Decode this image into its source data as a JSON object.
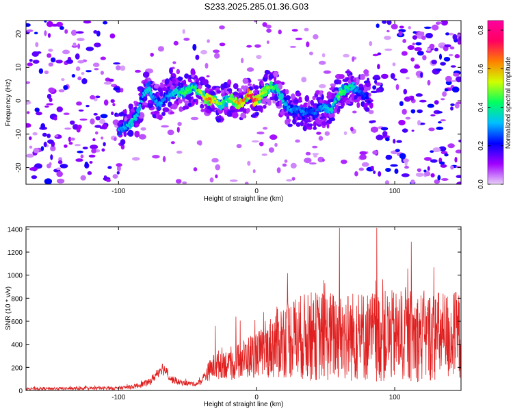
{
  "title": "S233.2025.285.01.36.G03",
  "chart_data": [
    {
      "type": "heatmap",
      "title": "S233.2025.285.01.36.G03",
      "xlabel": "Height of straight line (km)",
      "ylabel": "Frequency (Hz)",
      "xlim": [
        -167,
        148
      ],
      "ylim": [
        -25,
        24
      ],
      "xticks": [
        -100,
        0,
        100
      ],
      "yticks": [
        20,
        10,
        0,
        -10,
        -20
      ],
      "colorbar": {
        "label": "Normalized spectral amplitude",
        "range": [
          0.0,
          0.85
        ],
        "ticks": [
          "0.0",
          "0.2",
          "0.4",
          "0.6",
          "0.8"
        ],
        "colors": [
          "#e8d0f8",
          "#a000ff",
          "#0000ff",
          "#00c0ff",
          "#00ff60",
          "#d0ff00",
          "#ff8000",
          "#ff0060",
          "#ff00a0"
        ]
      },
      "ridge": {
        "x": [
          -100,
          -95,
          -90,
          -86,
          -82,
          -78,
          -74,
          -70,
          -66,
          -62,
          -58,
          -54,
          -50,
          -46,
          -42,
          -38,
          -34,
          -30,
          -26,
          -22,
          -18,
          -14,
          -10,
          -6,
          -2,
          2,
          6,
          10,
          14,
          18,
          22,
          26,
          30,
          34,
          38,
          42,
          46,
          50,
          54,
          58,
          62,
          66,
          70,
          74,
          78,
          82
        ],
        "freq": [
          -9,
          -8,
          -6,
          -4,
          2,
          4,
          0,
          -1,
          1,
          2,
          3,
          2,
          3,
          4,
          3,
          1,
          0,
          0,
          -1,
          0,
          1,
          -1,
          0,
          2,
          0,
          1,
          3,
          4,
          4,
          1,
          -2,
          -3,
          -2,
          -4,
          -3,
          -4,
          -2,
          -2,
          -3,
          1,
          3,
          4,
          4,
          3,
          2,
          0
        ],
        "amplitude": [
          0.3,
          0.35,
          0.4,
          0.35,
          0.35,
          0.4,
          0.3,
          0.35,
          0.3,
          0.35,
          0.4,
          0.45,
          0.5,
          0.45,
          0.5,
          0.6,
          0.7,
          0.6,
          0.5,
          0.4,
          0.55,
          0.65,
          0.7,
          0.75,
          0.85,
          0.6,
          0.55,
          0.5,
          0.45,
          0.4,
          0.35,
          0.3,
          0.3,
          0.3,
          0.25,
          0.3,
          0.3,
          0.35,
          0.4,
          0.45,
          0.5,
          0.45,
          0.4,
          0.3,
          0.25,
          0.2
        ]
      },
      "noise": {
        "left_region_x": [
          -167,
          -100
        ],
        "right_region_x": [
          82,
          148
        ],
        "background_amplitude": 0.1
      },
      "features": [
        {
          "x": -45,
          "freq": 16,
          "amplitude": 0.2
        },
        {
          "x": -62,
          "freq": 9,
          "amplitude": 0.15
        }
      ]
    },
    {
      "type": "line",
      "xlabel": "Height of straight line (km)",
      "ylabel": "SNR (10 * v/v)",
      "xlim": [
        -167,
        148
      ],
      "ylim": [
        0,
        1420
      ],
      "xticks": [
        -100,
        0,
        100
      ],
      "yticks": [
        0,
        200,
        400,
        600,
        800,
        1000,
        1200,
        1400
      ],
      "series": [
        {
          "name": "SNR",
          "color": "#e02020",
          "profile": {
            "x": [
              -167,
              -100,
              -88,
              -78,
              -73,
              -69,
              -66,
              -62,
              -56,
              -52,
              -48,
              -44,
              -40,
              -36,
              -32,
              -28,
              -24,
              -20,
              -16,
              -12,
              -8,
              -4,
              0,
              4,
              8,
              12,
              16,
              20,
              30,
              40,
              60,
              80,
              100,
              120,
              148
            ],
            "mean": [
              15,
              20,
              35,
              70,
              130,
              200,
              170,
              100,
              70,
              65,
              60,
              55,
              80,
              150,
              200,
              220,
              250,
              200,
              230,
              260,
              280,
              300,
              320,
              330,
              350,
              400,
              420,
              450,
              460,
              470,
              470,
              470,
              470,
              470,
              470
            ],
            "spread": [
              12,
              15,
              20,
              30,
              40,
              60,
              50,
              35,
              25,
              22,
              20,
              20,
              30,
              70,
              110,
              130,
              140,
              120,
              140,
              170,
              180,
              200,
              200,
              210,
              240,
              300,
              320,
              340,
              370,
              390,
              400,
              400,
              400,
              400,
              400
            ]
          },
          "peaks": [
            {
              "x": -30,
              "value": 560
            },
            {
              "x": -15,
              "value": 640
            },
            {
              "x": 60,
              "value": 1410
            },
            {
              "x": 87,
              "value": 1410
            },
            {
              "x": 112,
              "value": 1290
            }
          ]
        }
      ]
    }
  ]
}
